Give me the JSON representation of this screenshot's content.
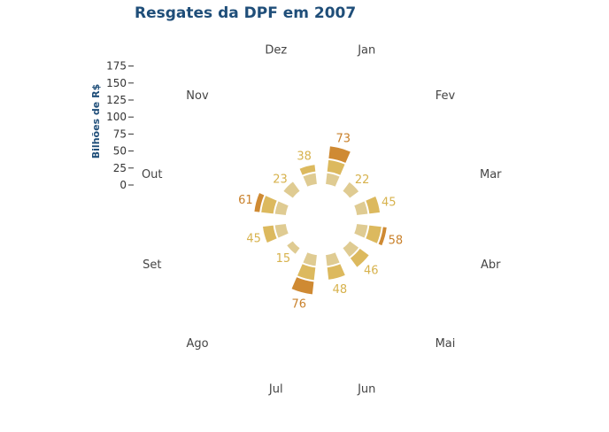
{
  "chart_data": {
    "type": "bar",
    "subtype": "radial-stacked",
    "title": "Resgates da DPF em 2007",
    "ylabel": "Bilhões de R$",
    "yticks": [
      "0",
      "25",
      "50",
      "75",
      "100",
      "125",
      "150",
      "175"
    ],
    "ylim": [
      0,
      175
    ],
    "categories": [
      "Jan",
      "Fev",
      "Mar",
      "Abr",
      "Mai",
      "Jun",
      "Jul",
      "Ago",
      "Set",
      "Out",
      "Nov",
      "Dez"
    ],
    "totals": [
      "73",
      "22",
      "45",
      "58",
      "46",
      "48",
      "76",
      "15",
      "45",
      "61",
      "23",
      "38"
    ],
    "series_estimated_segments": [
      [
        22,
        25,
        26
      ],
      [
        22
      ],
      [
        22,
        23
      ],
      [
        22,
        26,
        10
      ],
      [
        22,
        24
      ],
      [
        22,
        26
      ],
      [
        22,
        27,
        27
      ],
      [
        15
      ],
      [
        22,
        23
      ],
      [
        22,
        26,
        13
      ],
      [
        23
      ],
      [
        22,
        16
      ]
    ],
    "colors": {
      "segment_light": "#dfcb92",
      "segment_mid": "#dcb95e",
      "segment_dark": "#cf8a33",
      "label_dark": "#c9812b",
      "label_light": "#d7b24d"
    },
    "legend": "none",
    "grid": false
  }
}
